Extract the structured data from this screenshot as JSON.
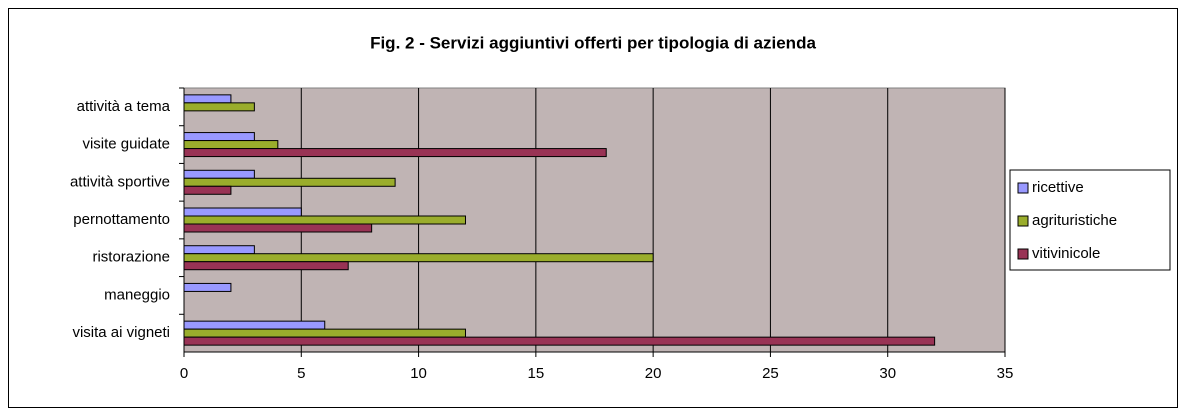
{
  "chart_data": {
    "type": "bar",
    "orientation": "horizontal",
    "title": "Fig. 2 - Servizi aggiuntivi offerti per tipologia di azienda",
    "categories": [
      "attività a tema",
      "visite guidate",
      "attività sportive",
      "pernottamento",
      "ristorazione",
      "maneggio",
      "visita ai vigneti"
    ],
    "series": [
      {
        "name": "ricettive",
        "color": "#9999ff",
        "values": [
          2,
          3,
          3,
          5,
          3,
          2,
          6
        ]
      },
      {
        "name": "agrituristiche",
        "color": "#9aad2c",
        "values": [
          3,
          4,
          9,
          12,
          20,
          0,
          12
        ]
      },
      {
        "name": "vitivinicole",
        "color": "#993355",
        "values": [
          0,
          18,
          2,
          8,
          7,
          0,
          32
        ]
      }
    ],
    "xlim": [
      0,
      35
    ],
    "xticks": [
      0,
      5,
      10,
      15,
      20,
      25,
      30,
      35
    ],
    "grid": true,
    "legend": "right",
    "plot_background": "#c0b4b4"
  }
}
